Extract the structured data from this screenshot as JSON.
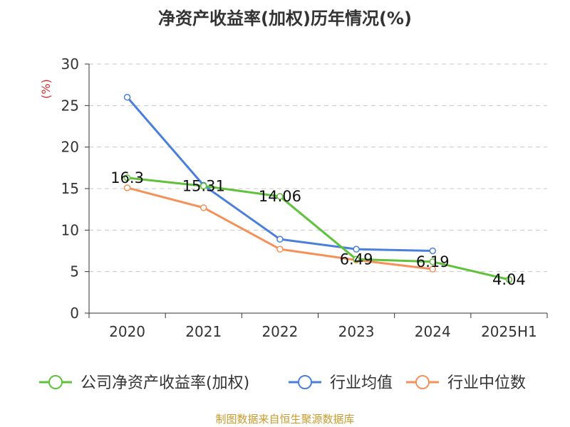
{
  "title": "净资产收益率(加权)历年情况(%)",
  "source": "制图数据来自恒生聚源数据库",
  "chart_data": {
    "type": "line",
    "title": "净资产收益率(加权)历年情况(%)",
    "ylabel": "(%)",
    "xlabel": "",
    "categories": [
      "2020",
      "2021",
      "2022",
      "2023",
      "2024",
      "2025H1"
    ],
    "ylim": [
      0,
      30
    ],
    "yticks": [
      0,
      5,
      10,
      15,
      20,
      25,
      30
    ],
    "grid": true,
    "legend_position": "bottom",
    "series": [
      {
        "name": "公司净资产收益率(加权)",
        "color": "#5fc23a",
        "values": [
          16.3,
          15.31,
          14.06,
          6.49,
          6.19,
          4.04
        ],
        "labels": [
          "16.3",
          "15.31",
          "14.06",
          "6.49",
          "6.19",
          "4.04"
        ]
      },
      {
        "name": "行业均值",
        "color": "#4a7fdb",
        "values": [
          26.0,
          15.4,
          8.9,
          7.7,
          7.5,
          null
        ]
      },
      {
        "name": "行业中位数",
        "color": "#f5905a",
        "values": [
          15.1,
          12.7,
          7.7,
          6.4,
          5.3,
          null
        ]
      }
    ]
  }
}
